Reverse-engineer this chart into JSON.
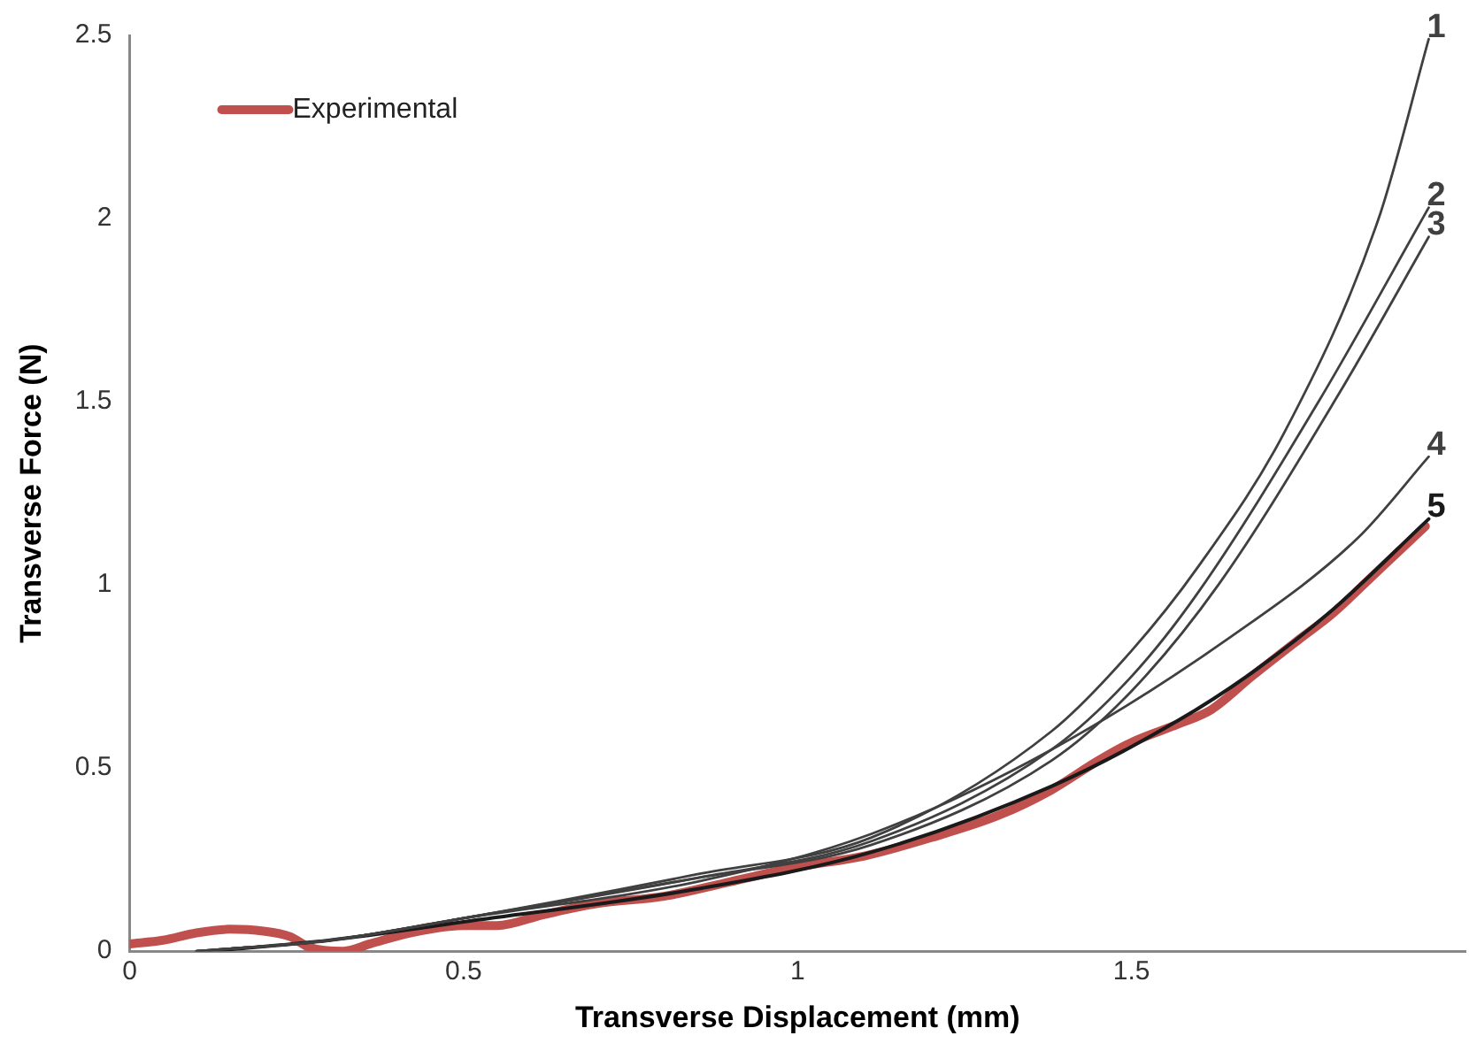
{
  "chart_data": {
    "type": "line",
    "xlabel": "Transverse Displacement (mm)",
    "ylabel": "Transverse Force (N)",
    "xlim": [
      0,
      2
    ],
    "xticks": [
      0,
      0.5,
      1,
      1.5
    ],
    "ylim": [
      0,
      2.5
    ],
    "yticks": [
      0,
      0.5,
      1,
      1.5,
      2,
      2.5
    ],
    "grid": false,
    "legend": "top left",
    "marker": "none",
    "line_style": "solid",
    "series": [
      {
        "name": "Experimental",
        "color": "#c0504d",
        "x": [
          0,
          0.05,
          0.1,
          0.15,
          0.2,
          0.24,
          0.27,
          0.32,
          0.36,
          0.42,
          0.5,
          0.55,
          0.62,
          0.7,
          0.8,
          0.9,
          1.0,
          1.1,
          1.2,
          1.3,
          1.38,
          1.45,
          1.5,
          1.57,
          1.62,
          1.68,
          1.75,
          1.8,
          1.87,
          1.94
        ],
        "values": [
          0.02,
          0.03,
          0.05,
          0.06,
          0.055,
          0.04,
          0.01,
          0.0,
          0.02,
          0.05,
          0.07,
          0.07,
          0.1,
          0.13,
          0.15,
          0.19,
          0.23,
          0.26,
          0.31,
          0.37,
          0.44,
          0.52,
          0.57,
          0.62,
          0.66,
          0.75,
          0.85,
          0.92,
          1.04,
          1.16
        ]
      },
      {
        "name": "1",
        "color": "#404040",
        "x": [
          0.1,
          0.3,
          0.5,
          0.85,
          1.11,
          1.38,
          1.5,
          1.6,
          1.73,
          1.87,
          1.945
        ],
        "values": [
          0,
          0.03,
          0.09,
          0.21,
          0.31,
          0.6,
          0.82,
          1.05,
          1.42,
          2.0,
          2.49
        ]
      },
      {
        "name": "2",
        "color": "#404040",
        "x": [
          0.1,
          0.3,
          0.5,
          0.85,
          1.11,
          1.38,
          1.5,
          1.6,
          1.78,
          1.945
        ],
        "values": [
          0,
          0.03,
          0.09,
          0.2,
          0.3,
          0.55,
          0.75,
          0.98,
          1.5,
          2.03
        ]
      },
      {
        "name": "3",
        "color": "#404040",
        "x": [
          0.1,
          0.3,
          0.5,
          0.85,
          1.11,
          1.38,
          1.5,
          1.63,
          1.81,
          1.945
        ],
        "values": [
          0,
          0.03,
          0.09,
          0.2,
          0.29,
          0.52,
          0.71,
          1.0,
          1.52,
          1.95
        ]
      },
      {
        "name": "4",
        "color": "#404040",
        "x": [
          0.1,
          0.3,
          0.5,
          0.85,
          1.11,
          1.38,
          1.65,
          1.84,
          1.945
        ],
        "values": [
          0,
          0.03,
          0.09,
          0.19,
          0.32,
          0.55,
          0.86,
          1.13,
          1.35
        ]
      },
      {
        "name": "5",
        "color": "#1a1a1a",
        "x": [
          0.12,
          0.3,
          0.5,
          0.85,
          1.11,
          1.38,
          1.57,
          1.68,
          1.8,
          1.945
        ],
        "values": [
          0,
          0.03,
          0.08,
          0.17,
          0.27,
          0.45,
          0.63,
          0.76,
          0.93,
          1.18
        ]
      }
    ]
  }
}
